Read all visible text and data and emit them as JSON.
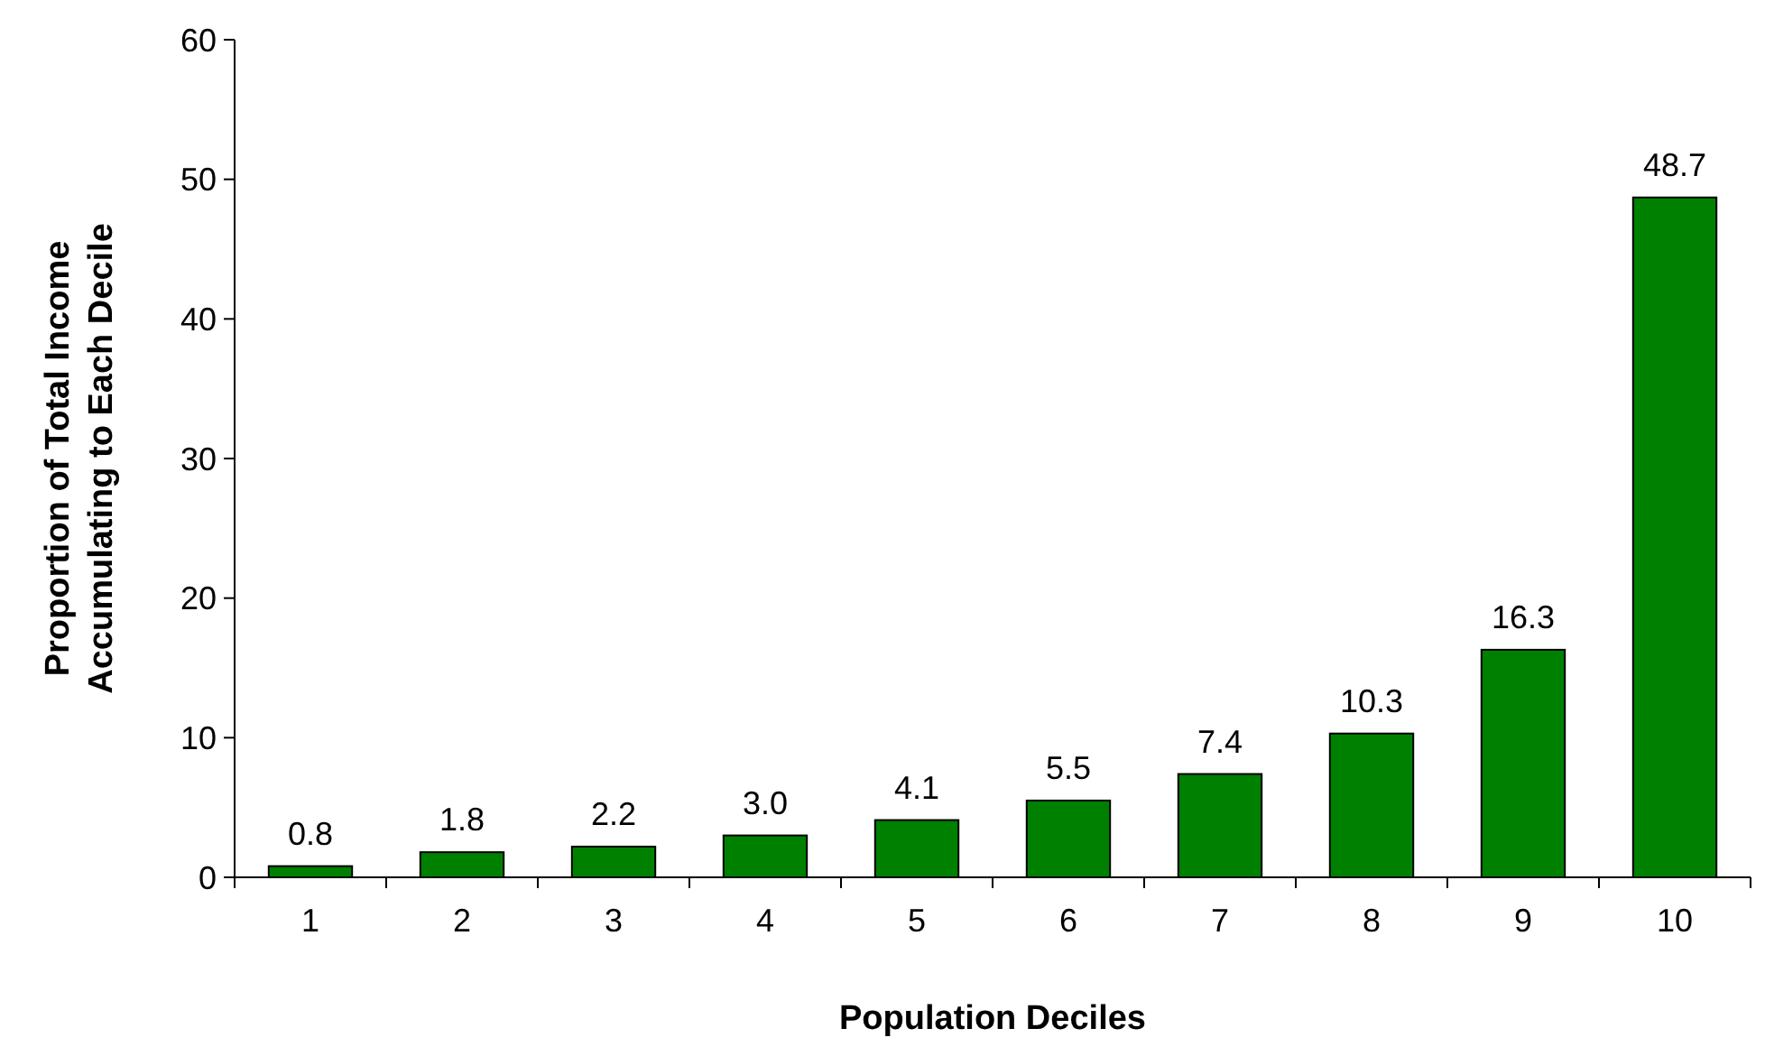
{
  "chart_data": {
    "type": "bar",
    "categories": [
      "1",
      "2",
      "3",
      "4",
      "5",
      "6",
      "7",
      "8",
      "9",
      "10"
    ],
    "values": [
      0.8,
      1.8,
      2.2,
      3.0,
      4.1,
      5.5,
      7.4,
      10.3,
      16.3,
      48.7
    ],
    "value_labels": [
      "0.8",
      "1.8",
      "2.2",
      "3.0",
      "4.1",
      "5.5",
      "7.4",
      "10.3",
      "16.3",
      "48.7"
    ],
    "color": "#008000",
    "ylim": [
      0,
      60
    ],
    "yticks": [
      0,
      10,
      20,
      30,
      40,
      50,
      60
    ],
    "xlabel": "Population Deciles",
    "ylabel": "Proportion of Total Income\nAccumulating to Each Decile",
    "grid": false
  }
}
